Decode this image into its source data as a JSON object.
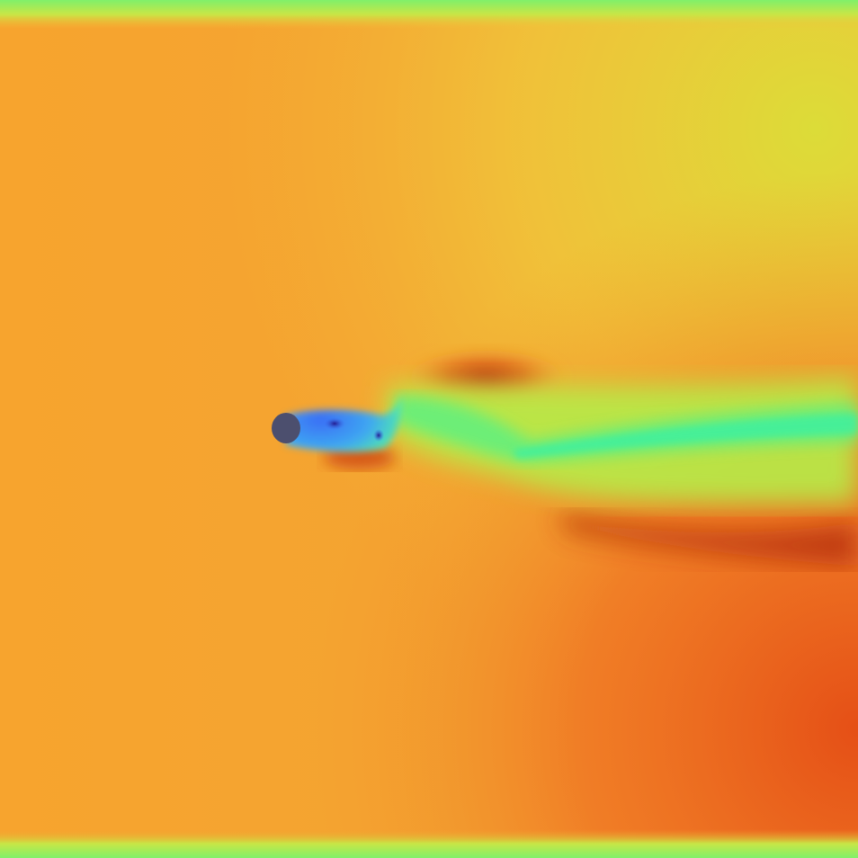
{
  "visualization": {
    "kind": "flow-field-visualization",
    "colormap": "turbo-like",
    "obstacle": "cylinder",
    "colors": {
      "background_left": "#f5a22e",
      "background_top_right": "#e6d43a",
      "background_bottom_right": "#e8561a",
      "wall": "#7ef06a",
      "wake_core": "#40f08a",
      "recirculation": "#3f86f6",
      "vortex_core": "#2a1f9a",
      "shear_red": "#b42b0a",
      "cylinder": "#4c4f6e"
    }
  }
}
